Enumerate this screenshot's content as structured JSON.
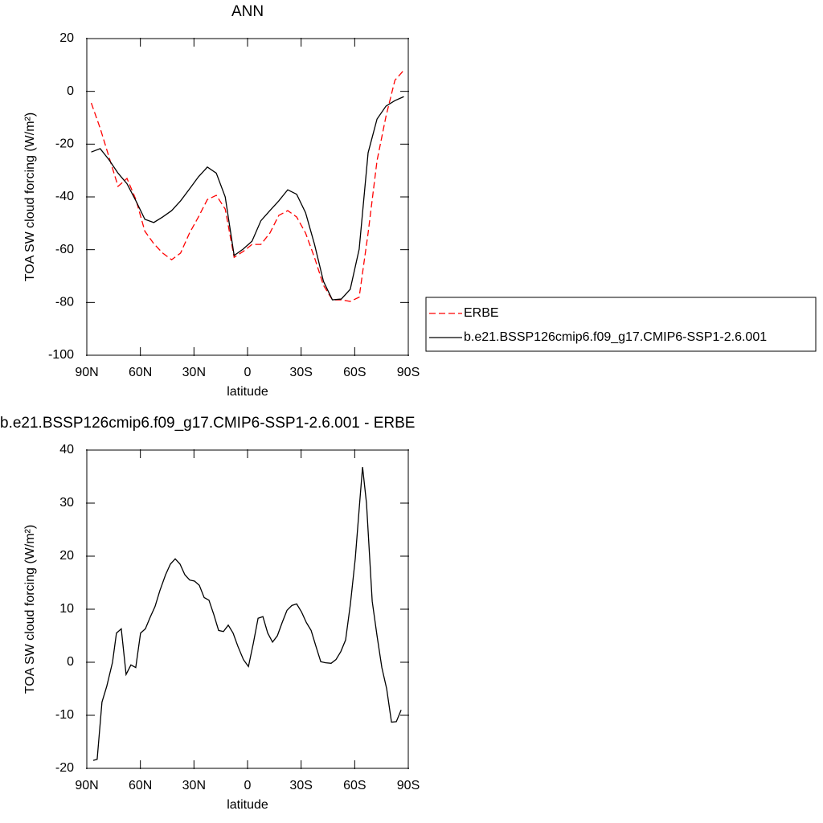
{
  "chart_data": [
    {
      "type": "line",
      "title": "ANN",
      "xlabel": "latitude",
      "ylabel": "TOA SW cloud forcing (W/m²)",
      "xlim": [
        90,
        -90
      ],
      "xticks": [
        {
          "value": 90,
          "label": "90N"
        },
        {
          "value": 60,
          "label": "60N"
        },
        {
          "value": 30,
          "label": "30N"
        },
        0,
        {
          "value": -30,
          "label": "30S"
        },
        {
          "value": -60,
          "label": "60S"
        },
        {
          "value": -90,
          "label": "90S"
        }
      ],
      "ylim": [
        -100,
        20
      ],
      "yticks": [
        20,
        0,
        -20,
        -40,
        -60,
        -80,
        -100
      ],
      "legend": "right",
      "x": [
        87.5,
        82.5,
        77.5,
        72.5,
        67.5,
        62.5,
        57.5,
        52.5,
        47.5,
        42.5,
        37.5,
        32.5,
        27.5,
        22.5,
        17.5,
        12.5,
        7.5,
        2.5,
        -2.5,
        -7.5,
        -12.5,
        -17.5,
        -22.5,
        -27.5,
        -32.5,
        -37.5,
        -42.5,
        -47.5,
        -52.5,
        -57.5,
        -62.5,
        -67.5,
        -72.5,
        -77.5,
        -82.5,
        -87.5
      ],
      "series": [
        {
          "name": "ERBE",
          "color": "#ff0000",
          "dash": "dashed",
          "values": [
            -4.4,
            -14,
            -25,
            -36,
            -33,
            -41,
            -53,
            -57.7,
            -61.3,
            -63.8,
            -61.3,
            -53.7,
            -47.6,
            -41,
            -39.4,
            -44.6,
            -62.9,
            -60.7,
            -58,
            -58,
            -53.7,
            -47,
            -45.2,
            -47.6,
            -53.7,
            -63,
            -73.5,
            -79,
            -79,
            -79.6,
            -78,
            -53.7,
            -26.3,
            -9.5,
            4.2,
            8
          ]
        },
        {
          "name": "b.e21.BSSP126cmip6.f09_g17.CMIP6-SSP1-2.6.001",
          "color": "#000000",
          "dash": "solid",
          "values": [
            -23,
            -21.7,
            -26,
            -31,
            -35,
            -41.5,
            -48.5,
            -49.7,
            -47.6,
            -45.2,
            -41.5,
            -37,
            -32.4,
            -28.7,
            -31,
            -40,
            -62.2,
            -59.8,
            -56.8,
            -49,
            -45.2,
            -41.5,
            -37.3,
            -39,
            -46,
            -58,
            -72,
            -79,
            -78.7,
            -75,
            -59.8,
            -23.3,
            -10.5,
            -5.6,
            -3.5,
            -2
          ]
        }
      ]
    },
    {
      "type": "line",
      "title": "b.e21.BSSP126cmip6.f09_g17.CMIP6-SSP1-2.6.001 - ERBE",
      "xlabel": "latitude",
      "ylabel": "TOA SW cloud forcing (W/m²)",
      "xlim": [
        90,
        -90
      ],
      "xticks": [
        {
          "value": 90,
          "label": "90N"
        },
        {
          "value": 60,
          "label": "60N"
        },
        {
          "value": 30,
          "label": "30N"
        },
        0,
        {
          "value": -30,
          "label": "30S"
        },
        {
          "value": -60,
          "label": "60S"
        },
        {
          "value": -90,
          "label": "90S"
        }
      ],
      "ylim": [
        -20,
        40
      ],
      "yticks": [
        40,
        30,
        20,
        10,
        0,
        -10,
        -20
      ],
      "x": [
        86.4,
        84.2,
        81.5,
        78.8,
        75.6,
        73.4,
        70.7,
        68,
        65.3,
        62.6,
        59.9,
        57.2,
        54.5,
        51.8,
        49.1,
        45.9,
        43.2,
        40.5,
        37.8,
        35.1,
        32.4,
        29.7,
        27,
        24.3,
        21.6,
        18.9,
        16.2,
        13.5,
        10.8,
        8.1,
        5.4,
        2.3,
        -0.5,
        -3.2,
        -5.9,
        -8.6,
        -11.3,
        -14,
        -16.7,
        -19.4,
        -22.1,
        -24.8,
        -27.5,
        -30.2,
        -32.9,
        -35.6,
        -38.3,
        -41,
        -43.7,
        -46.8,
        -49.5,
        -52.2,
        -54.9,
        -57.6,
        -60.3,
        -63,
        -64.4,
        -66.6,
        -69.8,
        -72.5,
        -75.2,
        -77.9,
        -80.6,
        -83.3,
        -86
      ],
      "series": [
        {
          "color": "#000000",
          "dash": "solid",
          "values": [
            -18.5,
            -18.3,
            -7.5,
            -4.5,
            0,
            5.5,
            6.3,
            -2.3,
            -0.5,
            -1,
            5.5,
            6.3,
            8.5,
            10.5,
            13.5,
            16.5,
            18.5,
            19.5,
            18.5,
            16.5,
            15.5,
            15.3,
            14.5,
            12.2,
            11.7,
            9,
            6,
            5.8,
            7,
            5.5,
            3,
            0.5,
            -0.8,
            3.5,
            8.3,
            8.6,
            5.5,
            3.8,
            5,
            7.5,
            9.8,
            10.7,
            11,
            9.5,
            7.5,
            6,
            3,
            0.1,
            -0.1,
            -0.2,
            0.5,
            2,
            4.2,
            11,
            19.5,
            31,
            36.8,
            30,
            11.5,
            5,
            -1,
            -5,
            -11.3,
            -11.2,
            -9
          ]
        }
      ]
    }
  ]
}
